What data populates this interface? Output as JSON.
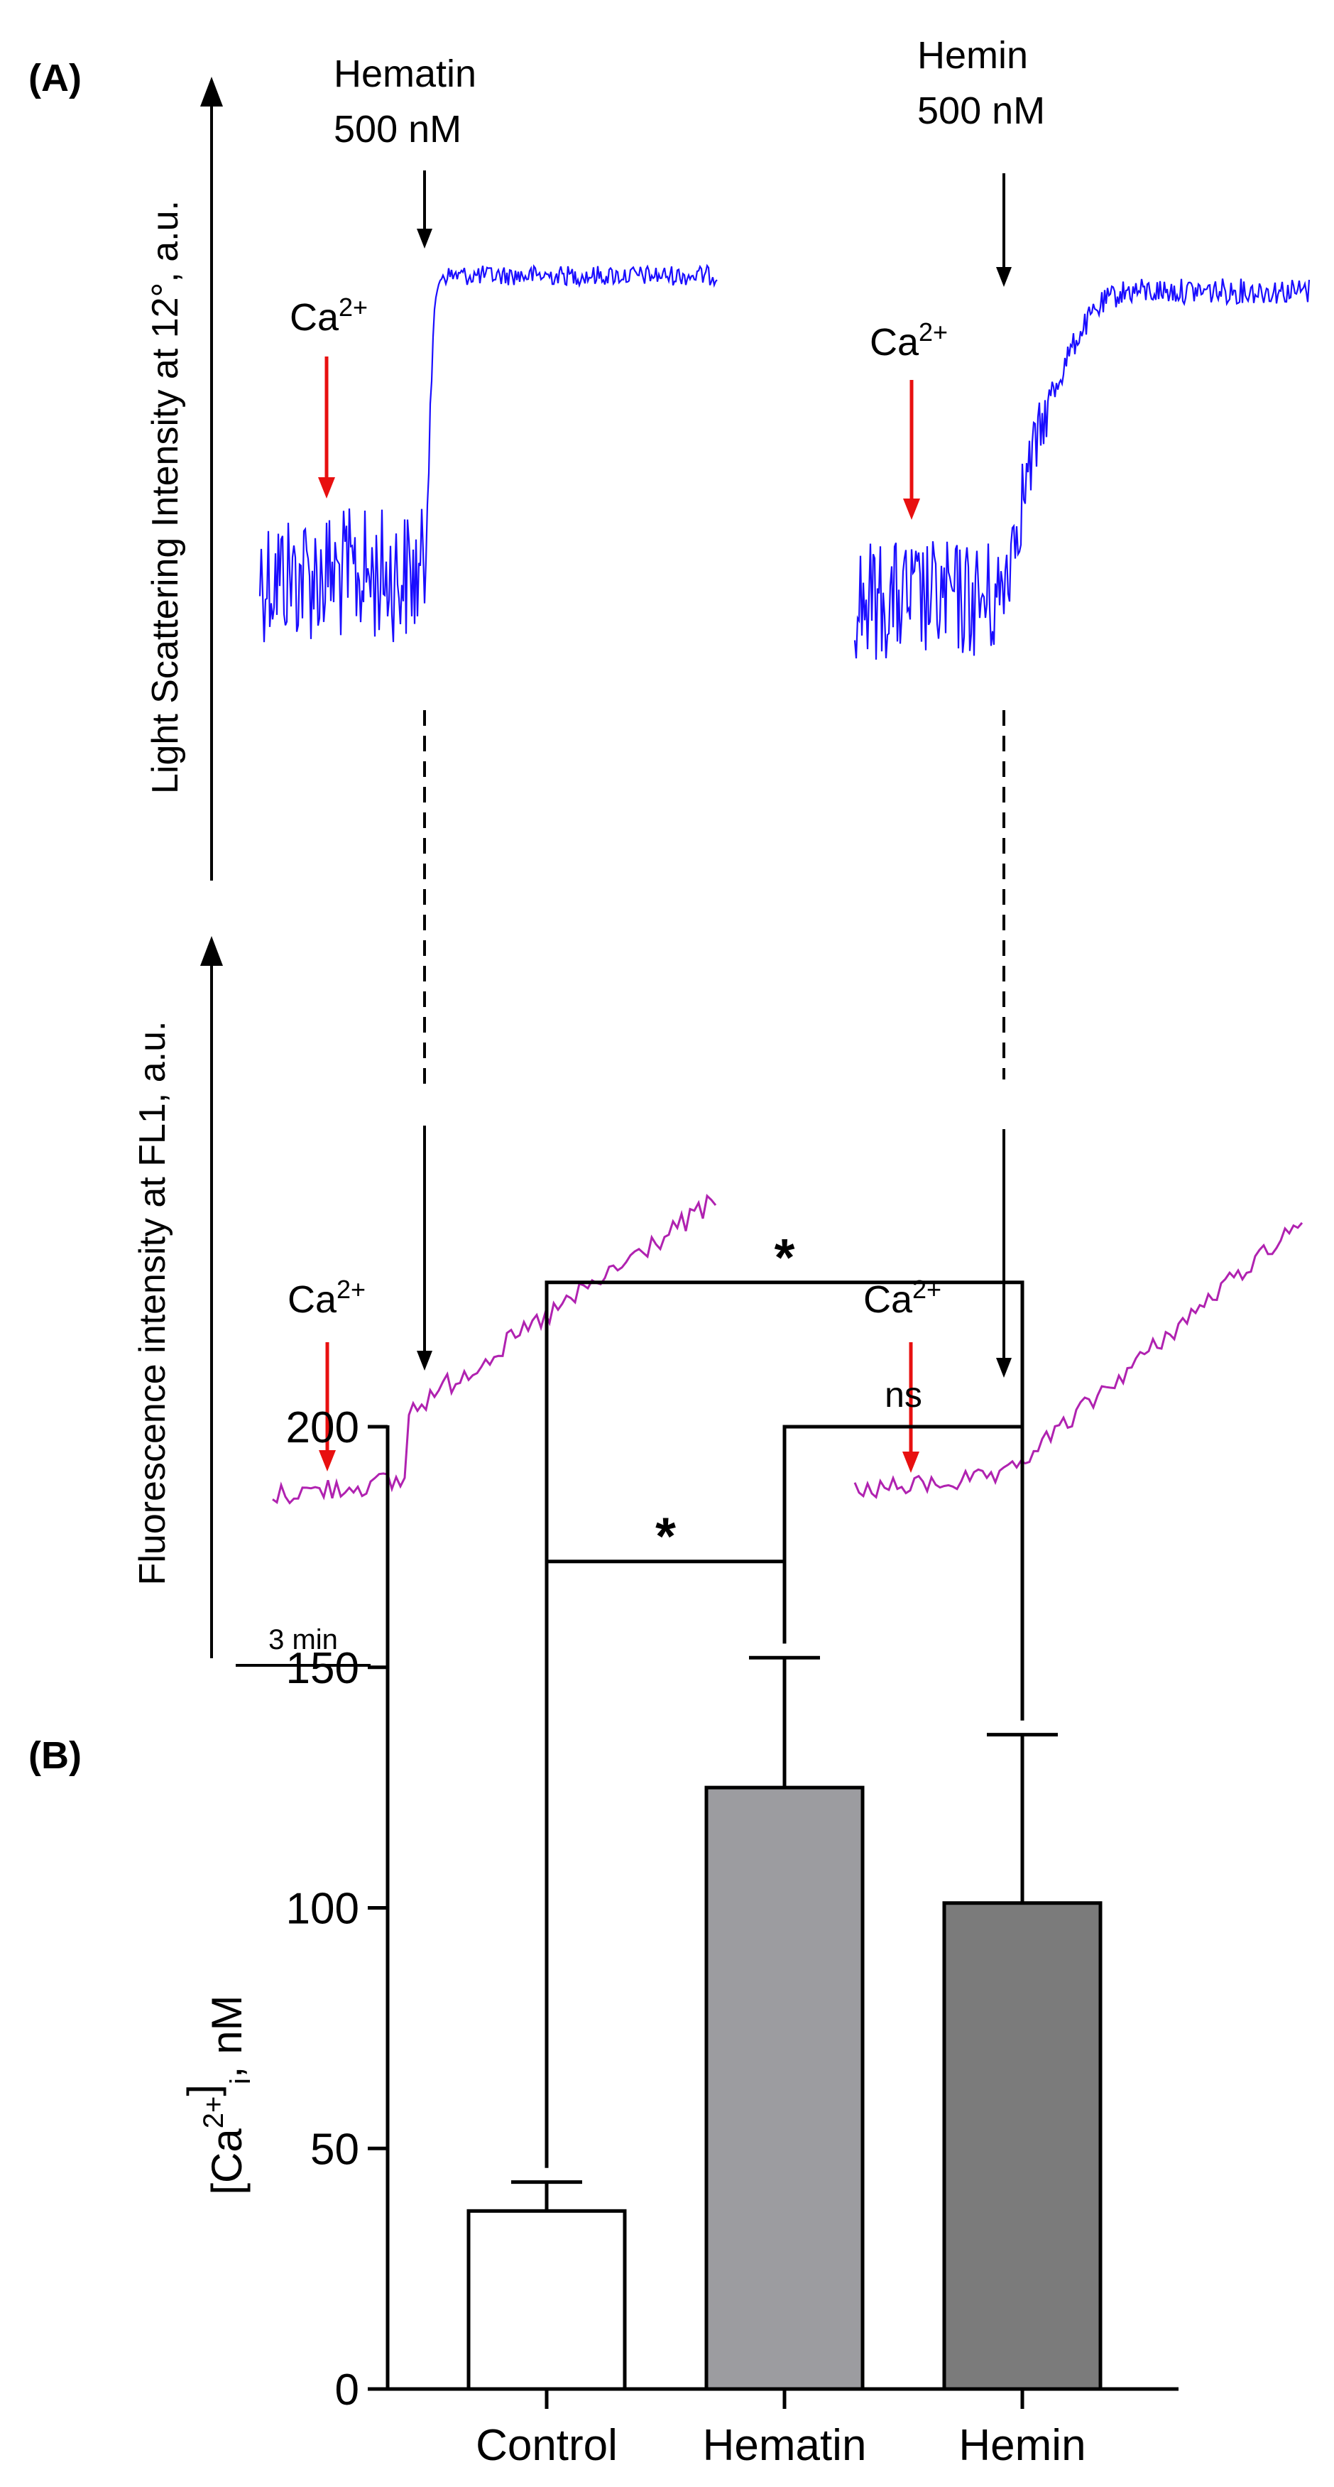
{
  "panel_labels": {
    "a": "(A)",
    "b": "(B)"
  },
  "panel_a": {
    "top_axis_label": "Light Scattering Intensity at 12°, a.u.",
    "bottom_axis_label": "Fluorescence intensity at FL1, a.u.",
    "scale_bar_label": "3 min",
    "ca_label": "Ca",
    "ca_superscript": "2+",
    "agents": [
      {
        "name": "Hematin",
        "dose": "500 nM"
      },
      {
        "name": "Hemin",
        "dose": "500 nM"
      }
    ],
    "colors": {
      "scatter": "#1a0dff",
      "fluor": "#b022b0",
      "ca_arrow": "#e81010",
      "agent_arrow": "#000000"
    }
  },
  "chart_data": {
    "type": "bar",
    "title": "",
    "xlabel": "",
    "ylabel_main": "[Ca",
    "ylabel_sup": "2+",
    "ylabel_sub": "i",
    "ylabel_tail": ", nM",
    "categories": [
      "Control",
      "Hematin",
      "Hemin"
    ],
    "values": [
      37,
      125,
      101
    ],
    "errors": [
      6,
      27,
      35
    ],
    "colors": [
      "#ffffff",
      "#9c9ca0",
      "#7b7b7b"
    ],
    "ylim": [
      0,
      200
    ],
    "yticks": [
      0,
      50,
      100,
      150,
      200
    ],
    "significance": [
      {
        "from": 0,
        "to": 1,
        "label": "*",
        "level": 172
      },
      {
        "from": 1,
        "to": 2,
        "label": "ns",
        "level": 200
      },
      {
        "from": 0,
        "to": 2,
        "label": "*",
        "level": 230
      }
    ]
  }
}
